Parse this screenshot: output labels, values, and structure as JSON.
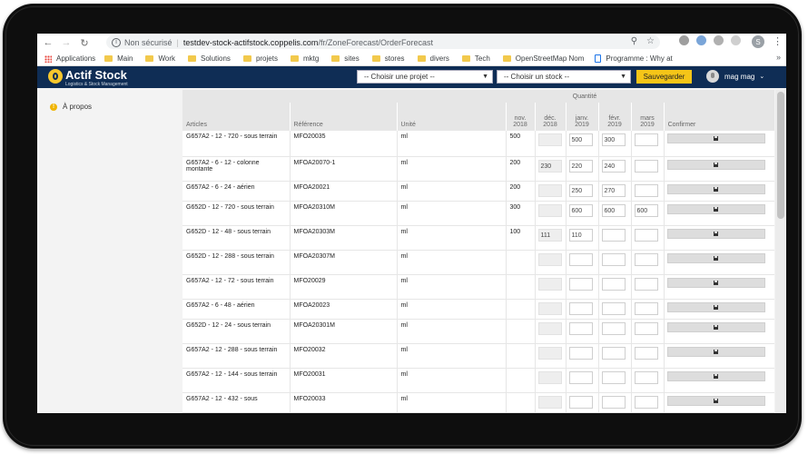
{
  "browser": {
    "security_label": "Non sécurisé",
    "url_host": "testdev-stock-actifstock.coppelis.com",
    "url_path": "/fr/ZoneForecast/OrderForecast",
    "profile_initial": "S",
    "bookmarks": [
      {
        "label": "Applications",
        "icon": "apps-grid-icon"
      },
      {
        "label": "Main",
        "icon": "folder-icon"
      },
      {
        "label": "Work",
        "icon": "folder-icon"
      },
      {
        "label": "Solutions",
        "icon": "folder-icon"
      },
      {
        "label": "projets",
        "icon": "folder-icon"
      },
      {
        "label": "mktg",
        "icon": "folder-icon"
      },
      {
        "label": "sites",
        "icon": "folder-icon"
      },
      {
        "label": "stores",
        "icon": "folder-icon"
      },
      {
        "label": "divers",
        "icon": "folder-icon"
      },
      {
        "label": "Tech",
        "icon": "folder-icon"
      },
      {
        "label": "OpenStreetMap Nom",
        "icon": "page-icon"
      },
      {
        "label": "Programme : Why at",
        "icon": "page-icon"
      }
    ],
    "more_label": "»"
  },
  "app": {
    "logo_text": "Actif Stock",
    "logo_subtitle": "Logistics & Stock Management",
    "project_select": "-- Choisir une projet --",
    "stock_select": "-- Choisir un stock --",
    "save_label": "Sauvegarder",
    "user_name": "mag mag",
    "accent": "#f5c518",
    "header_bg": "#0f2d55"
  },
  "sidebar": {
    "items": [
      {
        "label": "À propos",
        "icon": "info-icon"
      }
    ]
  },
  "table": {
    "group_header": "Quantité",
    "headers": {
      "articles": "Articles",
      "reference": "Référence",
      "unite": "Unité",
      "nov": "nov. 2018",
      "dec": "déc. 2018",
      "jan": "janv. 2019",
      "feb": "févr. 2019",
      "mar": "mars 2019",
      "confirm": "Confirmer"
    },
    "rows": [
      {
        "article": "G657A2 - 12 - 720 - sous terrain",
        "ref": "MFO20035",
        "unit": "ml",
        "nov": "500",
        "dec": "",
        "jan": "500",
        "feb": "300",
        "mar": ""
      },
      {
        "article": "G657A2 - 6 - 12 - colonne montante",
        "ref": "MFOA20070-1",
        "unit": "ml",
        "nov": "200",
        "dec": "230",
        "jan": "220",
        "feb": "240",
        "mar": ""
      },
      {
        "article": "G657A2 - 6 - 24 - aérien",
        "ref": "MFOA20021",
        "unit": "ml",
        "nov": "200",
        "dec": "",
        "jan": "250",
        "feb": "270",
        "mar": ""
      },
      {
        "article": "G652D - 12 - 720 - sous terrain",
        "ref": "MFOA20310M",
        "unit": "ml",
        "nov": "300",
        "dec": "",
        "jan": "600",
        "feb": "600",
        "mar": "600"
      },
      {
        "article": "G652D - 12 - 48 - sous terrain",
        "ref": "MFOA20303M",
        "unit": "ml",
        "nov": "100",
        "dec": "111",
        "jan": "110",
        "feb": "",
        "mar": ""
      },
      {
        "article": "G652D - 12 - 288 - sous terrain",
        "ref": "MFOA20307M",
        "unit": "ml",
        "nov": "",
        "dec": "",
        "jan": "",
        "feb": "",
        "mar": ""
      },
      {
        "article": "G657A2 - 12 - 72 - sous terrain",
        "ref": "MFO20029",
        "unit": "ml",
        "nov": "",
        "dec": "",
        "jan": "",
        "feb": "",
        "mar": ""
      },
      {
        "article": "G657A2 - 6 - 48 - aérien",
        "ref": "MFOA20023",
        "unit": "ml",
        "nov": "",
        "dec": "",
        "jan": "",
        "feb": "",
        "mar": ""
      },
      {
        "article": "G652D - 12 - 24 - sous terrain",
        "ref": "MFOA20301M",
        "unit": "ml",
        "nov": "",
        "dec": "",
        "jan": "",
        "feb": "",
        "mar": ""
      },
      {
        "article": "G657A2 - 12 - 288 - sous terrain",
        "ref": "MFO20032",
        "unit": "ml",
        "nov": "",
        "dec": "",
        "jan": "",
        "feb": "",
        "mar": ""
      },
      {
        "article": "G657A2 - 12 - 144 - sous terrain",
        "ref": "MFO20031",
        "unit": "ml",
        "nov": "",
        "dec": "",
        "jan": "",
        "feb": "",
        "mar": ""
      },
      {
        "article": "G657A2 - 12 - 432 - sous",
        "ref": "MFO20033",
        "unit": "ml",
        "nov": "",
        "dec": "",
        "jan": "",
        "feb": "",
        "mar": ""
      }
    ]
  }
}
